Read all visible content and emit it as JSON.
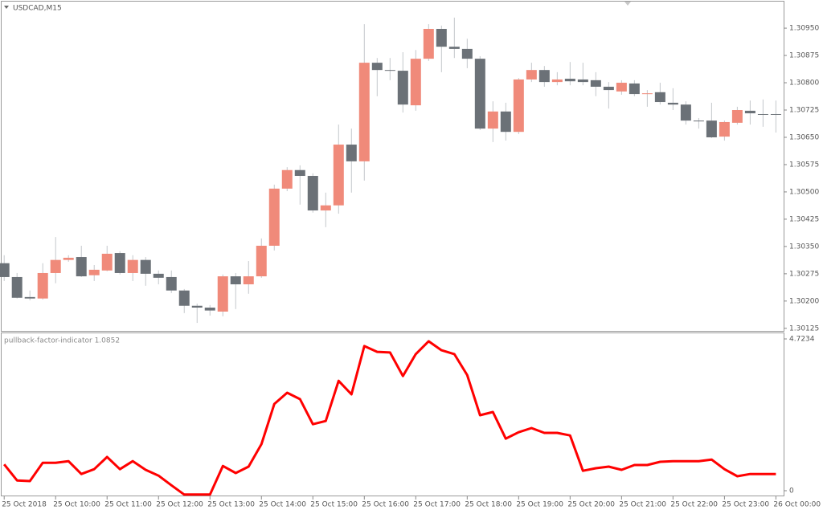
{
  "chart_data": [
    {
      "type": "candlestick",
      "title": "USDCAD,M15",
      "up_color": "#f08a7a",
      "down_color": "#6b7177",
      "wick_color": "#c3c7cb",
      "xlim": [
        -0.2,
        60.6
      ],
      "ylim": [
        1.30118,
        1.31023
      ],
      "yticks": [
        1.30125,
        {
          "value": 1.302,
          "label": "1.30200"
        },
        1.30275,
        {
          "value": 1.3035,
          "label": "1.30350"
        },
        1.30425,
        {
          "value": 1.305,
          "label": "1.30500"
        },
        1.30575,
        {
          "value": 1.3065,
          "label": "1.30650"
        },
        1.30725,
        {
          "value": 1.308,
          "label": "1.30800"
        },
        1.30875,
        {
          "value": 1.3095,
          "label": "1.30950"
        }
      ],
      "open": [
        1.30304,
        1.30266,
        1.30211,
        1.30207,
        1.30277,
        1.30313,
        1.30321,
        1.30271,
        1.30284,
        1.30332,
        1.30277,
        1.30313,
        1.30275,
        1.30266,
        1.30229,
        1.30187,
        1.30182,
        1.30171,
        1.30268,
        1.30246,
        1.30268,
        1.30352,
        1.30509,
        1.3056,
        1.30544,
        1.30449,
        1.30463,
        1.3063,
        1.30584,
        1.30855,
        1.30835,
        1.30833,
        1.30738,
        1.30866,
        1.30948,
        1.30899,
        1.30893,
        1.30866,
        1.30674,
        1.30721,
        1.30665,
        1.30809,
        1.30835,
        1.30802,
        1.30811,
        1.30809,
        1.30807,
        1.30789,
        1.30776,
        1.30798,
        1.30769,
        1.30774,
        1.30745,
        1.3074,
        1.30696,
        1.30696,
        1.30652,
        1.3069,
        1.30723,
        1.30714,
        1.30714
      ],
      "high": [
        1.30326,
        1.30277,
        1.30229,
        1.30304,
        1.30376,
        1.30326,
        1.30352,
        1.30299,
        1.30352,
        1.30337,
        1.30326,
        1.30321,
        1.30284,
        1.30284,
        1.30233,
        1.30193,
        1.30189,
        1.30273,
        1.30277,
        1.3031,
        1.30372,
        1.3052,
        1.30568,
        1.30573,
        1.30551,
        1.30498,
        1.30685,
        1.30674,
        1.30961,
        1.30868,
        1.30868,
        1.30884,
        1.3089,
        1.30961,
        1.30957,
        1.30979,
        1.30921,
        1.30873,
        1.30749,
        1.30745,
        1.30813,
        1.30855,
        1.30846,
        1.30829,
        1.30857,
        1.30855,
        1.30829,
        1.30802,
        1.30807,
        1.30807,
        1.3078,
        1.308,
        1.30785,
        1.30749,
        1.30703,
        1.30745,
        1.30696,
        1.30734,
        1.30751,
        1.30754,
        1.30751
      ],
      "low": [
        1.30255,
        1.30207,
        1.30202,
        1.30204,
        1.30249,
        1.30308,
        1.30266,
        1.30255,
        1.30282,
        1.30273,
        1.30255,
        1.30242,
        1.30246,
        1.30222,
        1.30167,
        1.3014,
        1.3016,
        1.30158,
        1.30178,
        1.3022,
        1.30264,
        1.30339,
        1.30502,
        1.30465,
        1.30443,
        1.30403,
        1.3044,
        1.30498,
        1.30531,
        1.30763,
        1.30807,
        1.30718,
        1.30723,
        1.3086,
        1.30829,
        1.30868,
        1.3084,
        1.3067,
        1.30637,
        1.30641,
        1.30659,
        1.30802,
        1.30789,
        1.30793,
        1.30793,
        1.30793,
        1.30763,
        1.30729,
        1.30767,
        1.30763,
        1.30734,
        1.3074,
        1.30725,
        1.30685,
        1.30674,
        1.30648,
        1.30641,
        1.30685,
        1.30685,
        1.30679,
        1.30663
      ],
      "close": [
        1.30266,
        1.30209,
        1.30207,
        1.30277,
        1.30313,
        1.30319,
        1.30268,
        1.30286,
        1.3033,
        1.30277,
        1.30313,
        1.30275,
        1.30264,
        1.30229,
        1.30187,
        1.30182,
        1.30174,
        1.30268,
        1.30246,
        1.30268,
        1.30352,
        1.30509,
        1.3056,
        1.30544,
        1.30449,
        1.30463,
        1.3063,
        1.30584,
        1.30855,
        1.30835,
        1.30833,
        1.3074,
        1.30866,
        1.30948,
        1.30899,
        1.30893,
        1.30866,
        1.30674,
        1.30721,
        1.30665,
        1.30809,
        1.30835,
        1.30802,
        1.30809,
        1.30804,
        1.30802,
        1.30789,
        1.3078,
        1.308,
        1.30769,
        1.30771,
        1.30747,
        1.3074,
        1.30696,
        1.30694,
        1.3065,
        1.30692,
        1.30725,
        1.30716,
        1.30712,
        1.30712
      ]
    },
    {
      "type": "line",
      "title": "pullback-factor-indicator 1.0852",
      "xlim": [
        -0.2,
        60.6
      ],
      "ylim": [
        -0.15,
        4.7234
      ],
      "yticks": [
        0,
        4.7234
      ],
      "xticks": [
        {
          "value": 0,
          "label": "25 Oct 2018"
        },
        {
          "value": 4,
          "label": "25 Oct 10:00"
        },
        {
          "value": 8,
          "label": "25 Oct 11:00"
        },
        {
          "value": 12,
          "label": "25 Oct 12:00"
        },
        {
          "value": 16,
          "label": "25 Oct 13:00"
        },
        {
          "value": 20,
          "label": "25 Oct 14:00"
        },
        {
          "value": 24,
          "label": "25 Oct 15:00"
        },
        {
          "value": 28,
          "label": "25 Oct 16:00"
        },
        {
          "value": 32,
          "label": "25 Oct 17:00"
        },
        {
          "value": 36,
          "label": "25 Oct 18:00"
        },
        {
          "value": 40,
          "label": "25 Oct 19:00"
        },
        {
          "value": 44,
          "label": "25 Oct 20:00"
        },
        {
          "value": 48,
          "label": "25 Oct 21:00"
        },
        {
          "value": 52,
          "label": "25 Oct 22:00"
        },
        {
          "value": 56,
          "label": "25 Oct 23:00"
        },
        {
          "value": 60,
          "label": "26 Oct 00:00"
        }
      ],
      "series": [
        {
          "color": "#ff0000",
          "values": [
            0.82,
            0.32,
            0.3,
            0.87,
            0.87,
            0.92,
            0.52,
            0.67,
            1.05,
            0.67,
            0.92,
            0.65,
            0.47,
            0.17,
            -0.12,
            -0.12,
            -0.12,
            0.77,
            0.55,
            0.75,
            1.45,
            2.7,
            3.05,
            2.85,
            2.07,
            2.17,
            3.42,
            3.0,
            4.5,
            4.32,
            4.3,
            3.57,
            4.25,
            4.65,
            4.37,
            4.25,
            3.6,
            2.35,
            2.45,
            1.62,
            1.82,
            1.95,
            1.8,
            1.8,
            1.72,
            0.62,
            0.7,
            0.75,
            0.65,
            0.8,
            0.8,
            0.9,
            0.92,
            0.92,
            0.92,
            0.97,
            0.67,
            0.45,
            0.52,
            0.52,
            0.52
          ]
        }
      ]
    }
  ]
}
